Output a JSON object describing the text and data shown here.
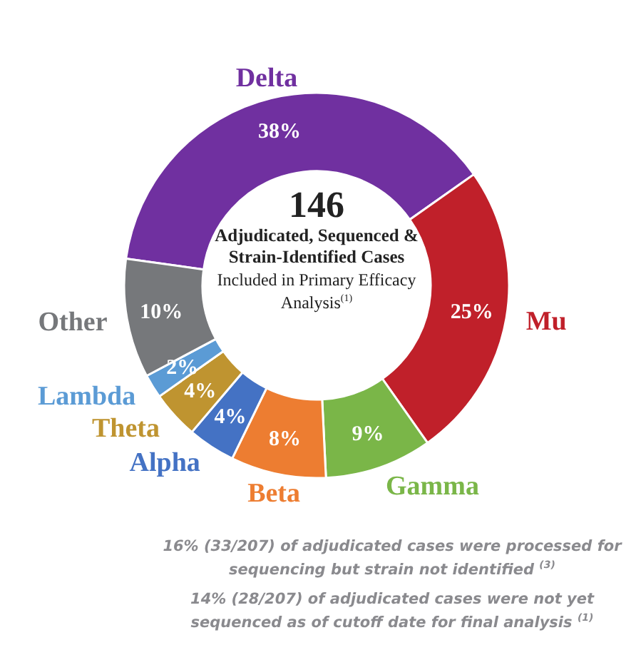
{
  "chart_data": {
    "type": "donut",
    "title": "146",
    "subtitle": "Adjudicated, Sequenced & Strain-Identified Cases",
    "categories": [
      "Delta",
      "Mu",
      "Gamma",
      "Beta",
      "Alpha",
      "Theta",
      "Lambda",
      "Other"
    ],
    "values": [
      38,
      25,
      9,
      8,
      4,
      4,
      2,
      10
    ],
    "colors": [
      "#7030a0",
      "#c0202a",
      "#7ab648",
      "#ed7d31",
      "#4472c4",
      "#bf9430",
      "#5b9bd5",
      "#76787b"
    ],
    "value_labels": [
      "38%",
      "25%",
      "9%",
      "8%",
      "4%",
      "4%",
      "2%",
      "10%"
    ],
    "legend": false,
    "annotations": [
      "Included in Primary Efficacy Analysis$^{(1)}$",
      "16% (33/207) of adjudicated cases were processed for sequencing but strain not identified $^{(3)}$",
      "14% (28/207) of adjudicated cases were not yet sequenced as of cutoff date for final analysis $^{(1)}$"
    ]
  }
}
